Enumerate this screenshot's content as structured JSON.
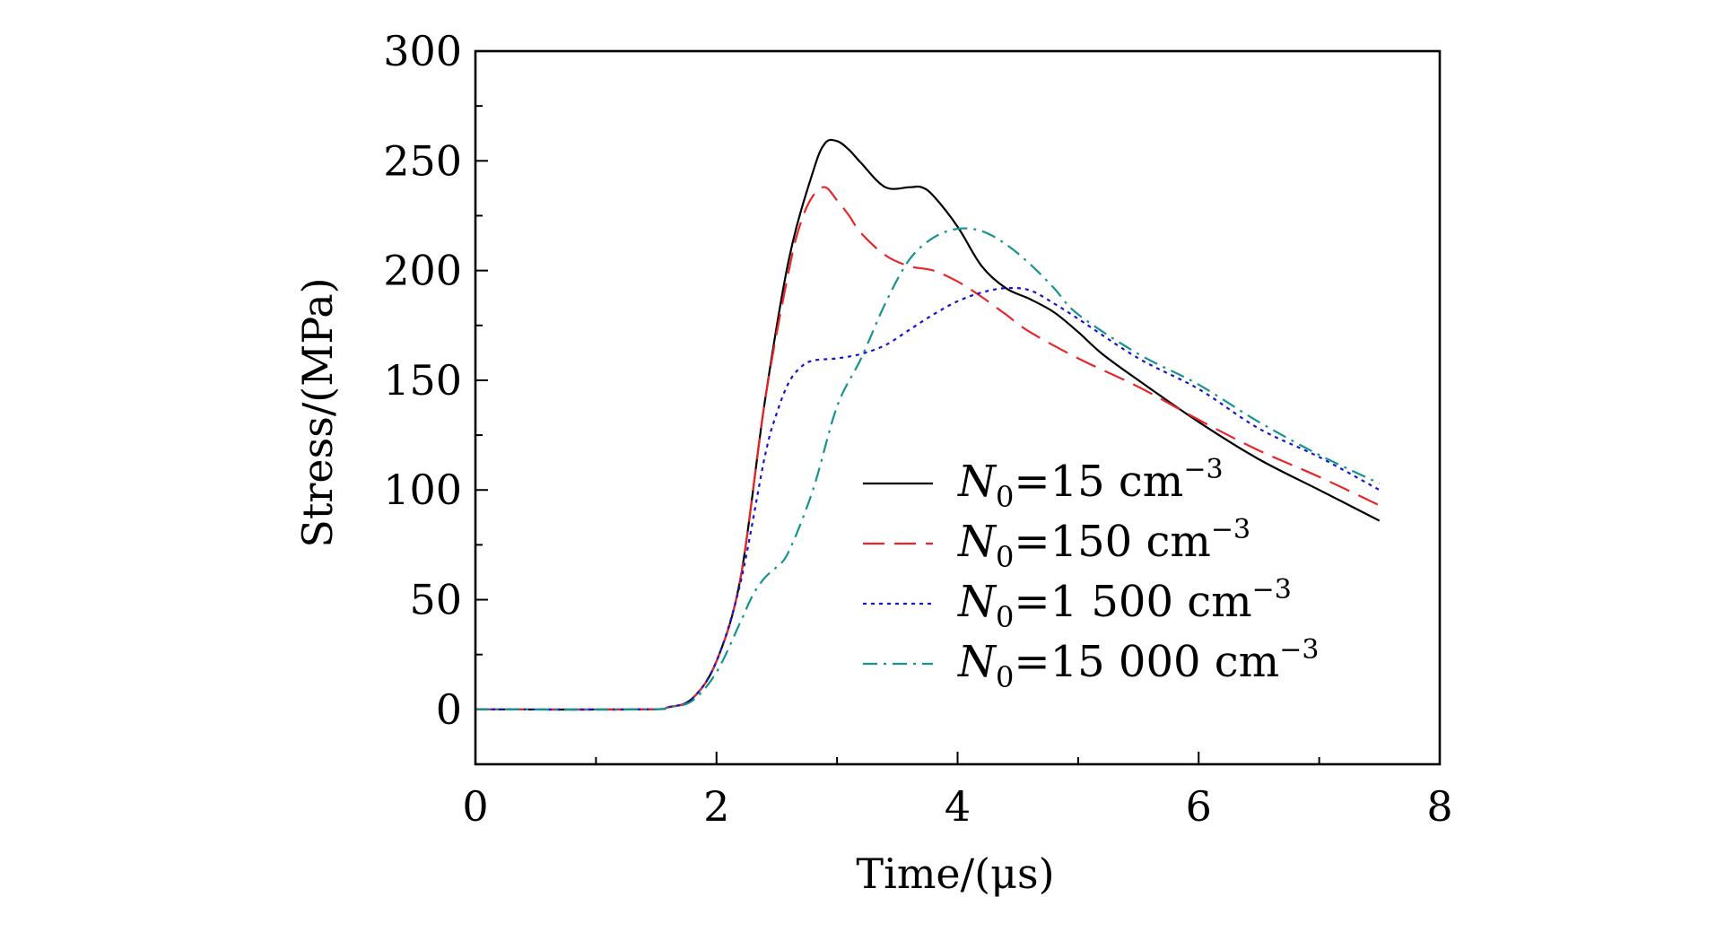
{
  "chart_data": {
    "type": "line",
    "xlabel": "Time/(μs)",
    "ylabel": "Stress/(MPa)",
    "xlim": [
      0,
      8
    ],
    "ylim": [
      -25,
      300
    ],
    "xticks": [
      0,
      2,
      4,
      6,
      8
    ],
    "xtick_labels": [
      "0",
      "2",
      "4",
      "6",
      "8"
    ],
    "yticks": [
      0,
      50,
      100,
      150,
      200,
      250,
      300
    ],
    "ytick_labels": [
      "0",
      "50",
      "100",
      "150",
      "200",
      "250",
      "300"
    ],
    "x_minor_step": 1,
    "y_minor_step": 25,
    "grid": false,
    "legend_position": "lower-right",
    "series": [
      {
        "name": "N0=15 cm−3",
        "legend": {
          "sym": "N",
          "sub": "0",
          "text": "=15 cm",
          "sup": "−3"
        },
        "color": "#000000",
        "dash": "solid",
        "x": [
          0,
          1.4,
          1.6,
          1.8,
          2.0,
          2.2,
          2.4,
          2.6,
          2.8,
          2.9,
          3.0,
          3.1,
          3.2,
          3.4,
          3.6,
          3.7,
          3.8,
          4.0,
          4.2,
          4.4,
          4.6,
          4.8,
          5.0,
          5.2,
          5.5,
          6.0,
          6.5,
          7.0,
          7.5
        ],
        "y": [
          0,
          0,
          1,
          5,
          22,
          60,
          140,
          205,
          245,
          258,
          259,
          255,
          249,
          238,
          238,
          238,
          234,
          220,
          202,
          192,
          187,
          181,
          172,
          162,
          150,
          131,
          114,
          100,
          86
        ]
      },
      {
        "name": "N0=150 cm−3",
        "legend": {
          "sym": "N",
          "sub": "0",
          "text": "=150 cm",
          "sup": "−3"
        },
        "color": "#e8262a",
        "dash": "24,11",
        "x": [
          0,
          1.4,
          1.6,
          1.8,
          2.0,
          2.2,
          2.4,
          2.6,
          2.7,
          2.8,
          2.9,
          3.0,
          3.1,
          3.2,
          3.4,
          3.6,
          3.8,
          4.0,
          4.2,
          4.4,
          4.6,
          5.0,
          5.5,
          6.0,
          6.5,
          7.0,
          7.5
        ],
        "y": [
          0,
          0,
          1,
          5,
          22,
          60,
          140,
          200,
          222,
          234,
          238,
          232,
          225,
          217,
          207,
          202,
          200,
          195,
          188,
          180,
          172,
          160,
          147,
          132,
          118,
          106,
          93
        ]
      },
      {
        "name": "N0=1 500 cm−3",
        "legend": {
          "sym": "N",
          "sub": "0",
          "text": "=1 500 cm",
          "sup": "−3"
        },
        "color": "#1414d2",
        "dash": "4,5",
        "x": [
          0,
          1.4,
          1.6,
          1.8,
          2.0,
          2.2,
          2.4,
          2.5,
          2.6,
          2.7,
          2.8,
          3.0,
          3.2,
          3.4,
          3.6,
          3.8,
          4.0,
          4.2,
          4.4,
          4.6,
          4.8,
          5.0,
          5.5,
          6.0,
          6.5,
          7.0,
          7.5
        ],
        "y": [
          0,
          0,
          1,
          5,
          22,
          58,
          115,
          135,
          149,
          156,
          159,
          160,
          162,
          166,
          173,
          180,
          186,
          190,
          192,
          191,
          185,
          178,
          160,
          146,
          128,
          115,
          100
        ]
      },
      {
        "name": "N0=15 000 cm−3",
        "legend": {
          "sym": "N",
          "sub": "0",
          "text": "=15 000 cm",
          "sup": "−3"
        },
        "color": "#15948f",
        "dash": "16,7,3,7",
        "x": [
          0,
          1.4,
          1.6,
          1.8,
          2.0,
          2.2,
          2.3,
          2.4,
          2.5,
          2.6,
          2.8,
          3.0,
          3.2,
          3.4,
          3.6,
          3.8,
          4.0,
          4.2,
          4.4,
          4.6,
          4.8,
          5.0,
          5.5,
          6.0,
          6.5,
          7.0,
          7.5
        ],
        "y": [
          0,
          0,
          1,
          4,
          17,
          40,
          52,
          60,
          65,
          72,
          100,
          138,
          160,
          185,
          205,
          215,
          219,
          218,
          212,
          203,
          192,
          180,
          162,
          148,
          131,
          116,
          103
        ]
      }
    ]
  }
}
